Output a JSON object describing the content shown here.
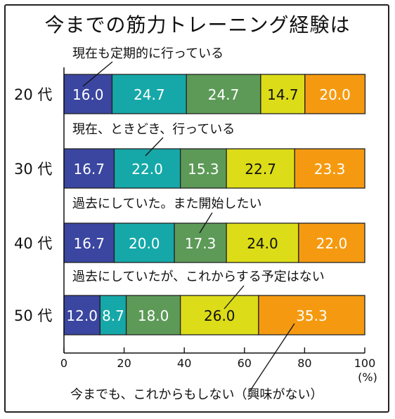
{
  "chart_data": {
    "type": "bar",
    "orientation": "horizontal",
    "stacked": true,
    "title": "今までの筋力トレーニング経験は",
    "categories": [
      "20 代",
      "30 代",
      "40 代",
      "50 代"
    ],
    "series": [
      {
        "name": "現在も定期的に行っている",
        "values": [
          16.0,
          16.7,
          16.7,
          12.0
        ],
        "labels": [
          "16.0",
          "16.7",
          "16.7",
          "12.0"
        ],
        "color": "#3a46a0"
      },
      {
        "name": "現在、ときどき、行っている",
        "values": [
          24.7,
          22.0,
          20.0,
          8.7
        ],
        "labels": [
          "24.7",
          "22.0",
          "20.0",
          "8.7"
        ],
        "color": "#16a8a8"
      },
      {
        "name": "過去にしていた。また開始したい",
        "values": [
          24.7,
          15.3,
          17.3,
          18.0
        ],
        "labels": [
          "24.7",
          "15.3",
          "17.3",
          "18.0"
        ],
        "color": "#5d9a58"
      },
      {
        "name": "過去にしていたが、これからする予定はない",
        "values": [
          14.7,
          22.7,
          24.0,
          26.0
        ],
        "labels": [
          "14.7",
          "22.7",
          "24.0",
          "26.0"
        ],
        "color": "#dcdc18"
      },
      {
        "name": "今までも、これからもしない（興味がない）",
        "values": [
          20.0,
          23.3,
          22.0,
          35.3
        ],
        "labels": [
          "20.0",
          "23.3",
          "22.0",
          "35.3"
        ],
        "color": "#f59a10"
      }
    ],
    "xlim": [
      0,
      100
    ],
    "xticks": [
      "0",
      "20",
      "40",
      "60",
      "80",
      "100"
    ],
    "xunit": "(%)"
  }
}
